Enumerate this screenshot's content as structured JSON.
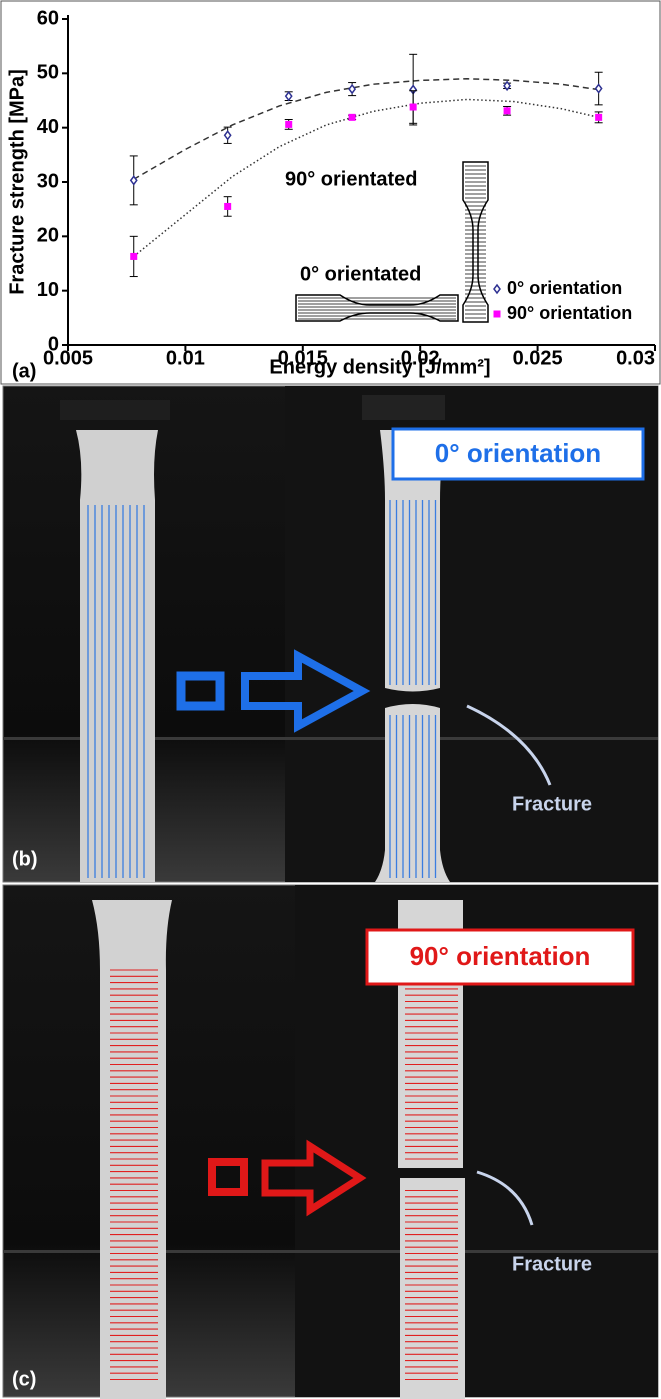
{
  "chart_data": {
    "type": "scatter",
    "label": "(a)",
    "xlabel": "Energy density [J/mm²]",
    "ylabel": "Fracture strength [MPa]",
    "xlim": [
      0.005,
      0.03
    ],
    "xticks": [
      0.005,
      0.01,
      0.015,
      0.02,
      0.025,
      0.03
    ],
    "ylim": [
      0,
      60
    ],
    "yticks": [
      0,
      10,
      20,
      30,
      40,
      50,
      60
    ],
    "legend": "lower right",
    "x": [
      0.0078,
      0.0118,
      0.0144,
      0.0171,
      0.0197,
      0.0237,
      0.0276
    ],
    "series": [
      {
        "name": "0° orientation",
        "color": "#2e3192",
        "marker": "diamond",
        "values": [
          30.3,
          38.6,
          45.8,
          47.1,
          47.0,
          47.7,
          47.2
        ],
        "errors": [
          4.5,
          1.5,
          0.8,
          1.2,
          6.5,
          0.5,
          3.0
        ]
      },
      {
        "name": "90° orientation",
        "color": "#ff00ff",
        "marker": "square",
        "values": [
          16.3,
          25.5,
          40.6,
          41.9,
          43.8,
          43.1,
          41.9
        ],
        "errors": [
          3.7,
          1.8,
          0.9,
          0.4,
          3.0,
          0.8,
          1.0
        ]
      }
    ],
    "fits": [
      {
        "color": "#333333",
        "dash": "6 4",
        "x": [
          0.0078,
          0.01,
          0.012,
          0.014,
          0.016,
          0.018,
          0.02,
          0.022,
          0.024,
          0.026,
          0.0276
        ],
        "values": [
          30.5,
          36,
          40.5,
          44,
          46.5,
          48,
          48.7,
          49,
          48.7,
          48,
          47
        ]
      },
      {
        "color": "#333333",
        "dash": "1.5 2.5",
        "x": [
          0.0078,
          0.01,
          0.012,
          0.014,
          0.016,
          0.018,
          0.02,
          0.022,
          0.024,
          0.026,
          0.0276
        ],
        "values": [
          16.3,
          24,
          31,
          36.5,
          40.5,
          43,
          44.5,
          45.2,
          44.8,
          43.5,
          41.9
        ]
      }
    ],
    "annotations": [
      "90° orientated",
      "0° orientated"
    ]
  },
  "panels": [
    {
      "label": "(b)",
      "title": "0° orientation",
      "annotation": "Fracture"
    },
    {
      "label": "(c)",
      "title": "90° orientation",
      "annotation": "Fracture"
    }
  ]
}
